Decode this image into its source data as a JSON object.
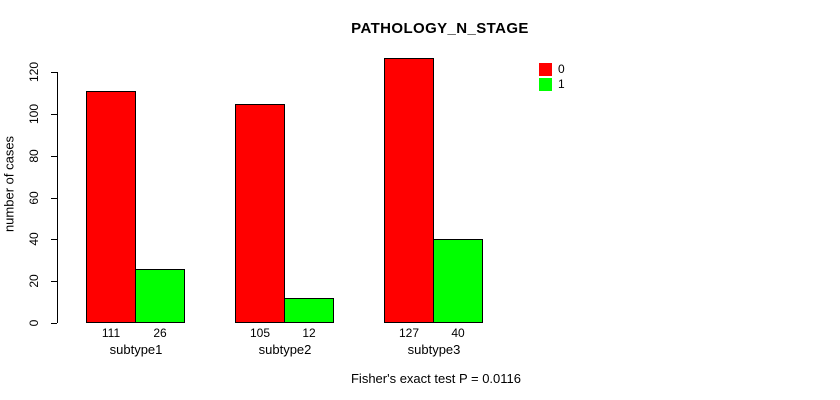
{
  "title": "PATHOLOGY_N_STAGE",
  "y_axis_label": "number of cases",
  "footer_note": "Fisher's exact test P = 0.0116",
  "legend": {
    "items": [
      {
        "label": "0",
        "color": "#ff0000"
      },
      {
        "label": "1",
        "color": "#00ff00"
      }
    ]
  },
  "chart_data": {
    "type": "bar",
    "title": "PATHOLOGY_N_STAGE",
    "xlabel": "",
    "ylabel": "number of cases",
    "categories": [
      "subtype1",
      "subtype2",
      "subtype3"
    ],
    "series": [
      {
        "name": "0",
        "color": "#ff0000",
        "values": [
          111,
          105,
          127
        ]
      },
      {
        "name": "1",
        "color": "#00ff00",
        "values": [
          26,
          12,
          40
        ]
      }
    ],
    "yticks": [
      0,
      20,
      40,
      60,
      80,
      100,
      120
    ],
    "ylim": [
      0,
      130
    ],
    "grid": false,
    "legend_position": "top-right",
    "bar_value_labels_shown": true,
    "annotation": "Fisher's exact test P = 0.0116"
  }
}
